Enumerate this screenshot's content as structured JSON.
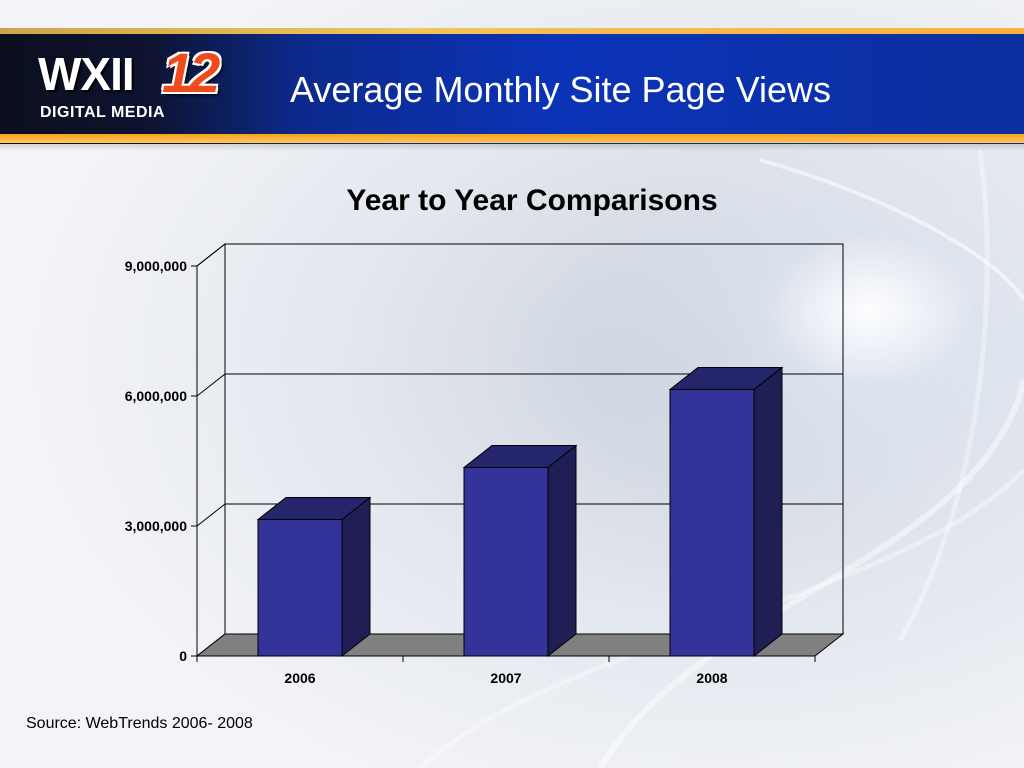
{
  "header": {
    "logo": {
      "wordmark": "WXII",
      "number": "12",
      "subtitle": "DIGITAL MEDIA"
    },
    "title": "Average Monthly Site Page Views"
  },
  "chart_data": {
    "type": "bar",
    "style": "3d-column",
    "title": "Year to Year Comparisons",
    "categories": [
      "2006",
      "2007",
      "2008"
    ],
    "values": [
      3150000,
      4350000,
      6150000
    ],
    "xlabel": "",
    "ylabel": "",
    "ylim": [
      0,
      9000000
    ],
    "yticks": [
      0,
      3000000,
      6000000,
      9000000
    ],
    "ytick_labels": [
      "0",
      "3,000,000",
      "6,000,000",
      "9,000,000"
    ],
    "grid": true,
    "legend": "none",
    "colors": {
      "bar_front": "#333399",
      "bar_side": "#1f1f55",
      "bar_top": "#25256b",
      "floor": "#808080"
    }
  },
  "footer": {
    "source": "Source: WebTrends 2006- 2008"
  }
}
